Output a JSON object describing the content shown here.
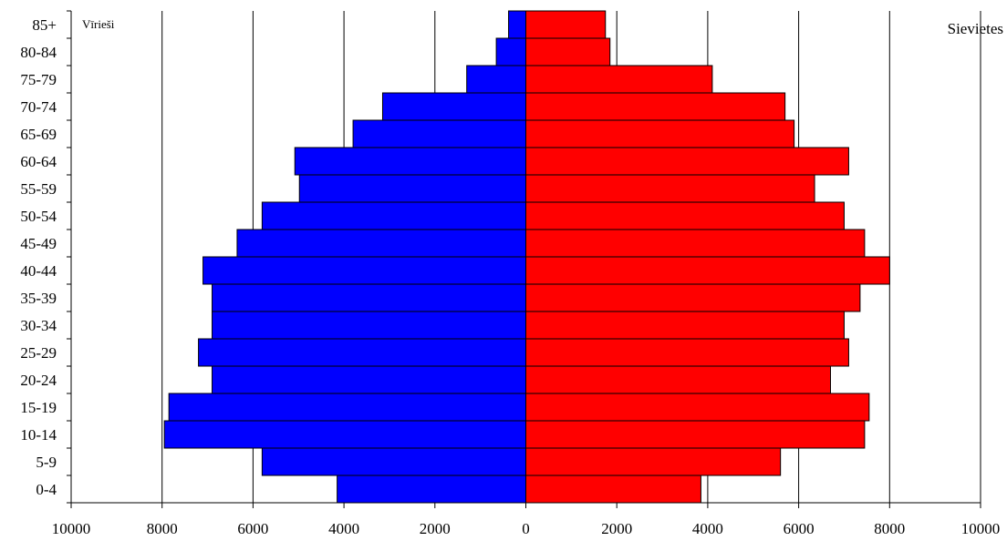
{
  "chart_data": {
    "type": "bar",
    "orientation": "horizontal-population-pyramid",
    "categories": [
      "0-4",
      "5-9",
      "10-14",
      "15-19",
      "20-24",
      "25-29",
      "30-34",
      "35-39",
      "40-44",
      "45-49",
      "50-54",
      "55-59",
      "60-64",
      "65-69",
      "70-74",
      "75-79",
      "80-84",
      "85+"
    ],
    "series": [
      {
        "name": "Vīrieši",
        "side": "left",
        "color": "#0000ff",
        "values": [
          4150,
          5800,
          7950,
          7850,
          6900,
          7200,
          6900,
          6900,
          7100,
          6350,
          5800,
          4980,
          5080,
          3800,
          3150,
          1300,
          650,
          380
        ]
      },
      {
        "name": "Sievietes",
        "side": "right",
        "color": "#ff0000",
        "values": [
          3850,
          5600,
          7450,
          7550,
          6700,
          7100,
          7000,
          7350,
          8000,
          7450,
          7000,
          6350,
          7100,
          5900,
          5700,
          4100,
          1850,
          1750
        ]
      }
    ],
    "xlim": [
      -10000,
      10000
    ],
    "x_ticks": [
      "10000",
      "8000",
      "6000",
      "4000",
      "2000",
      "0",
      "2000",
      "4000",
      "6000",
      "8000",
      "10000"
    ],
    "grid": true,
    "legend_left_text": "Vīrieši",
    "legend_right_text": "Sievietes",
    "legend_placement": "top-left / top-right"
  }
}
